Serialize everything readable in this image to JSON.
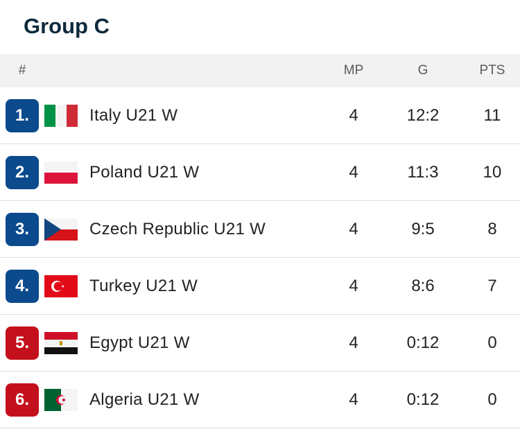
{
  "title": "Group C",
  "table": {
    "header": {
      "rank": "#",
      "mp": "MP",
      "g": "G",
      "pts": "PTS"
    },
    "rows": [
      {
        "rank": "1.",
        "team": "Italy U21 W",
        "mp": 4,
        "g": "12:2",
        "pts": 11,
        "color": "#0b4a8c"
      },
      {
        "rank": "2.",
        "team": "Poland U21 W",
        "mp": 4,
        "g": "11:3",
        "pts": 10,
        "color": "#0b4a8c"
      },
      {
        "rank": "3.",
        "team": "Czech Republic U21 W",
        "mp": 4,
        "g": "9:5",
        "pts": 8,
        "color": "#0b4a8c"
      },
      {
        "rank": "4.",
        "team": "Turkey U21 W",
        "mp": 4,
        "g": "8:6",
        "pts": 7,
        "color": "#0b4a8c"
      },
      {
        "rank": "5.",
        "team": "Egypt U21 W",
        "mp": 4,
        "g": "0:12",
        "pts": 0,
        "color": "#c4101c"
      },
      {
        "rank": "6.",
        "team": "Algeria U21 W",
        "mp": 4,
        "g": "0:12",
        "pts": 0,
        "color": "#c4101c"
      }
    ]
  }
}
